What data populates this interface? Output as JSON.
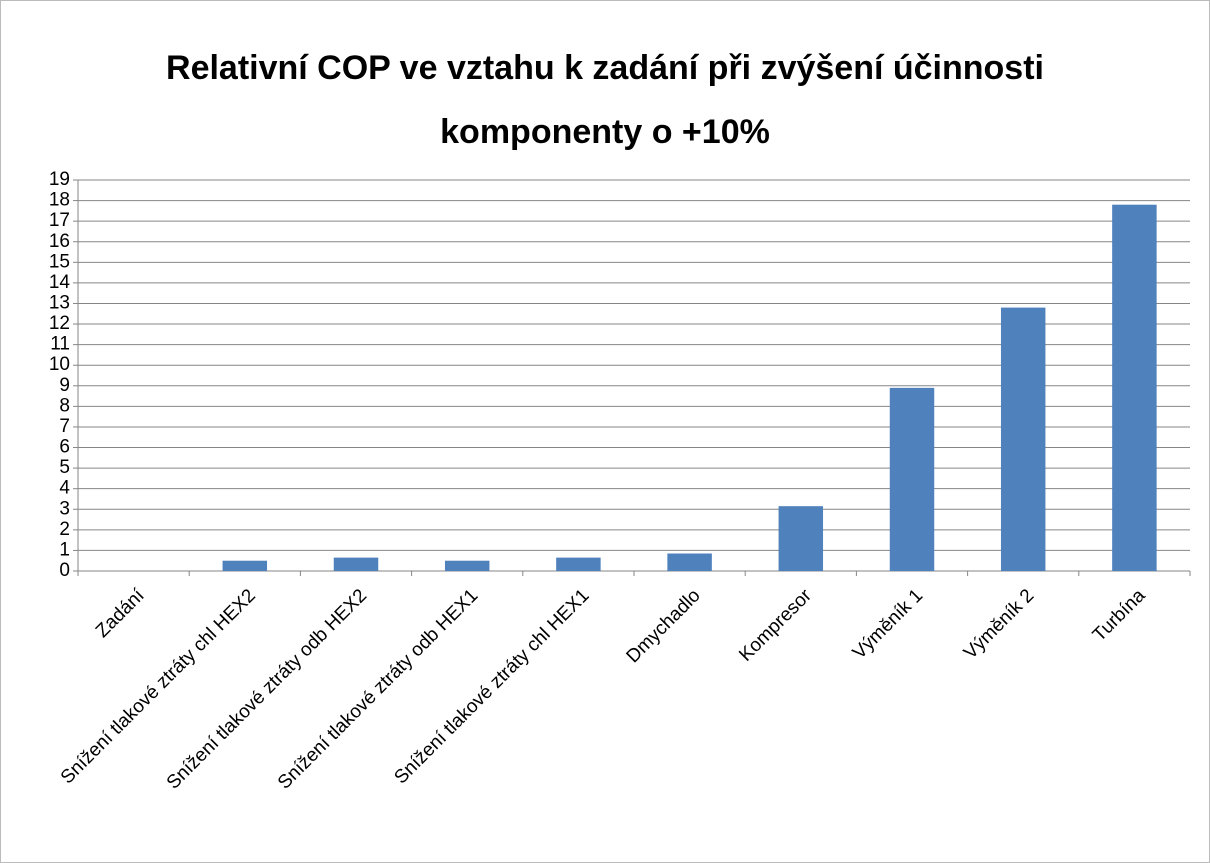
{
  "chart_data": {
    "type": "bar",
    "title": "Relativní COP ve vztahu k zadání při zvýšení účinnosti komponenty o +10%",
    "categories": [
      "Zadání",
      "Snížení tlakové ztráty chl HEX2",
      "Snížení tlakové ztráty odb HEX2",
      "Snížení tlakové ztráty odb HEX1",
      "Snížení tlakové ztráty chl HEX1",
      "Dmychadlo",
      "Kompresor",
      "Výměník 1",
      "Výměník 2",
      "Turbína"
    ],
    "values": [
      0,
      0.5,
      0.65,
      0.5,
      0.65,
      0.85,
      3.15,
      8.9,
      12.8,
      17.8
    ],
    "color": "#4f81bd",
    "ylim": [
      0,
      19
    ],
    "yticks": [
      0,
      1,
      2,
      3,
      4,
      5,
      6,
      7,
      8,
      9,
      10,
      11,
      12,
      13,
      14,
      15,
      16,
      17,
      18,
      19
    ],
    "grid": true
  }
}
